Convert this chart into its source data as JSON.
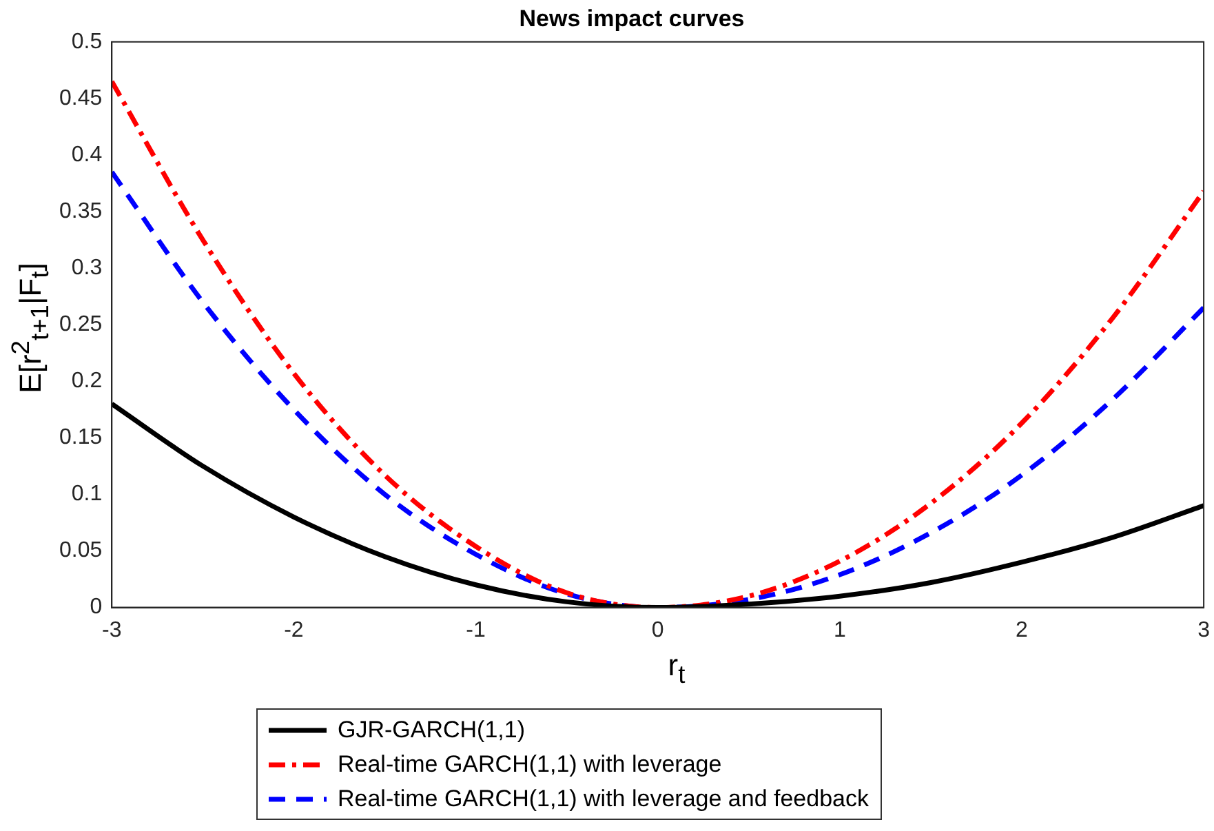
{
  "chart_data": {
    "type": "line",
    "title": "News impact curves",
    "xlabel": "r$_{t}$",
    "ylabel": "E[r$^{2}$$_{t+1}$|F$_{t}$]",
    "x": [
      -3,
      -2.5,
      -2,
      -1.5,
      -1,
      -0.5,
      0,
      0.5,
      1,
      1.5,
      2,
      2.5,
      3
    ],
    "series": [
      {
        "name": "GJR-GARCH(1,1)",
        "color": "#000000",
        "line_style": "solid",
        "values": [
          0.18,
          0.125,
          0.08,
          0.045,
          0.02,
          0.005,
          0,
          0.003,
          0.01,
          0.022,
          0.04,
          0.062,
          0.09
        ]
      },
      {
        "name": "Real-time GARCH(1,1) with leverage",
        "color": "#ff0000",
        "line_style": "dashdot",
        "values": [
          0.465,
          0.325,
          0.207,
          0.117,
          0.054,
          0.013,
          0,
          0.01,
          0.041,
          0.092,
          0.163,
          0.256,
          0.368
        ]
      },
      {
        "name": "Real-time GARCH(1,1) with leverage and feedback",
        "color": "#0000ff",
        "line_style": "dashed",
        "values": [
          0.385,
          0.27,
          0.175,
          0.1,
          0.047,
          0.012,
          0,
          0.007,
          0.029,
          0.066,
          0.117,
          0.184,
          0.265
        ]
      }
    ],
    "xlim": [
      -3,
      3
    ],
    "xticks": [
      -3,
      -2,
      -1,
      0,
      1,
      2,
      3
    ],
    "ylim": [
      0,
      0.5
    ],
    "yticks": [
      0,
      0.05,
      0.1,
      0.15,
      0.2,
      0.25,
      0.3,
      0.35,
      0.4,
      0.45,
      0.5
    ],
    "grid": false,
    "legend": "bottom",
    "marker": "none"
  }
}
